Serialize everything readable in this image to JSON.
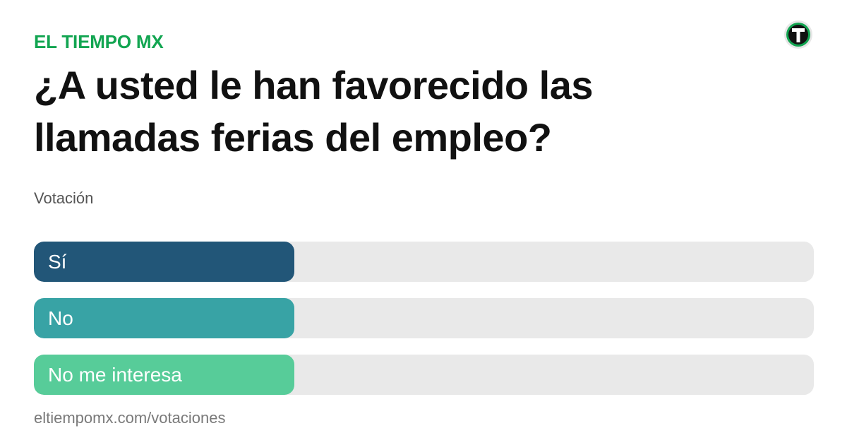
{
  "header": {
    "brand": "EL TIEMPO MX",
    "logo_icon": "el-tiempo-t-logo"
  },
  "poll": {
    "question": "¿A usted le han favorecido las llamadas ferias del empleo?",
    "subtitle": "Votación",
    "options": [
      {
        "label": "Sí",
        "color": "#225678"
      },
      {
        "label": "No",
        "color": "#38a3a5"
      },
      {
        "label": "No me interesa",
        "color": "#57cc99"
      }
    ]
  },
  "footer": {
    "url": "eltiempomx.com/votaciones"
  },
  "colors": {
    "brand": "#12a551",
    "track": "#e9e9e9"
  }
}
